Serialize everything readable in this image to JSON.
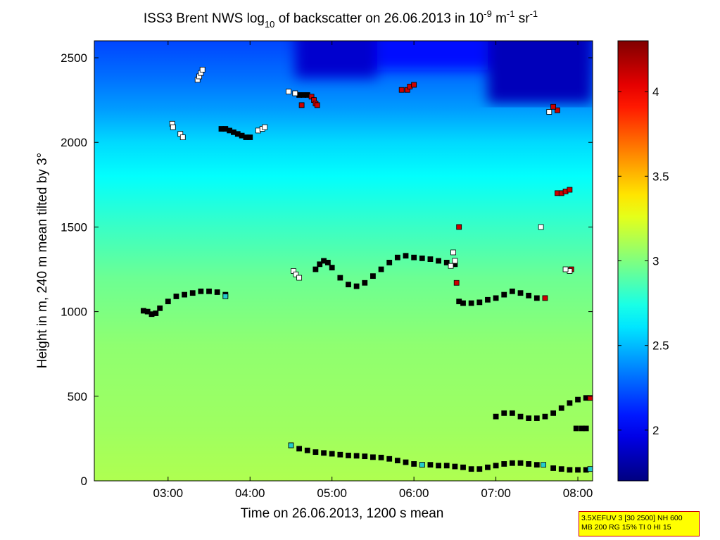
{
  "chart_data": {
    "type": "heatmap",
    "title_parts": {
      "prefix": "ISS3 Brent NWS log",
      "log_base": "10",
      "middle": " of backscatter on 26.06.2013 in 10",
      "exp1": "-9",
      "unit1": " m",
      "exp2": "-1",
      "unit2": " sr",
      "exp3": "-1"
    },
    "xlabel": "Time on 26.06.2013, 1200 s mean",
    "ylabel": "Height in m, 240 m mean tilted by 3°",
    "xlim_hours": [
      2.1,
      8.18
    ],
    "ylim": [
      0,
      2600
    ],
    "x_ticks": [
      {
        "value": 3,
        "label": "03:00"
      },
      {
        "value": 4,
        "label": "04:00"
      },
      {
        "value": 5,
        "label": "05:00"
      },
      {
        "value": 6,
        "label": "06:00"
      },
      {
        "value": 7,
        "label": "07:00"
      },
      {
        "value": 8,
        "label": "08:00"
      }
    ],
    "y_ticks": [
      {
        "value": 0,
        "label": "0"
      },
      {
        "value": 500,
        "label": "500"
      },
      {
        "value": 1000,
        "label": "1000"
      },
      {
        "value": 1500,
        "label": "1500"
      },
      {
        "value": 2000,
        "label": "2000"
      },
      {
        "value": 2500,
        "label": "2500"
      }
    ],
    "colorbar": {
      "range": [
        1.7,
        4.3
      ],
      "ticks": [
        {
          "value": 2,
          "label": "2"
        },
        {
          "value": 2.5,
          "label": "2.5"
        },
        {
          "value": 3,
          "label": "3"
        },
        {
          "value": 3.5,
          "label": "3.5"
        },
        {
          "value": 4,
          "label": "4"
        }
      ]
    },
    "field_profile": [
      {
        "h": 0,
        "v": 3.12
      },
      {
        "h": 300,
        "v": 3.08
      },
      {
        "h": 800,
        "v": 3.04
      },
      {
        "h": 1200,
        "v": 2.95
      },
      {
        "h": 1500,
        "v": 2.82
      },
      {
        "h": 1800,
        "v": 2.68
      },
      {
        "h": 2000,
        "v": 2.58
      },
      {
        "h": 2200,
        "v": 2.42
      },
      {
        "h": 2400,
        "v": 2.3
      },
      {
        "h": 2600,
        "v": 2.2
      }
    ],
    "dark_top_regions": [
      {
        "t1": 4.55,
        "t2": 5.55,
        "h": 2380,
        "v": 1.9
      },
      {
        "t1": 5.55,
        "t2": 6.9,
        "h": 2430,
        "v": 2.05
      },
      {
        "t1": 6.9,
        "t2": 8.18,
        "h": 2230,
        "v": 1.85
      }
    ],
    "series": [
      {
        "name": "layer-1000",
        "points": [
          [
            2.7,
            1005
          ],
          [
            2.75,
            1000
          ],
          [
            2.8,
            985
          ],
          [
            2.85,
            990
          ],
          [
            2.9,
            1020
          ],
          [
            3.0,
            1060
          ],
          [
            3.1,
            1090
          ],
          [
            3.2,
            1100
          ],
          [
            3.3,
            1110
          ],
          [
            3.4,
            1120
          ],
          [
            3.5,
            1120
          ],
          [
            3.6,
            1115
          ],
          [
            3.7,
            1100
          ]
        ],
        "fill": "#000000"
      },
      {
        "name": "layer-wave",
        "points": [
          [
            4.8,
            1250
          ],
          [
            4.85,
            1280
          ],
          [
            4.9,
            1300
          ],
          [
            4.95,
            1290
          ],
          [
            5.0,
            1260
          ],
          [
            5.1,
            1200
          ],
          [
            5.2,
            1160
          ],
          [
            5.3,
            1150
          ],
          [
            5.4,
            1170
          ],
          [
            5.5,
            1210
          ],
          [
            5.6,
            1250
          ],
          [
            5.7,
            1290
          ],
          [
            5.8,
            1320
          ],
          [
            5.9,
            1330
          ],
          [
            6.0,
            1320
          ],
          [
            6.1,
            1315
          ],
          [
            6.2,
            1310
          ],
          [
            6.3,
            1300
          ],
          [
            6.4,
            1290
          ],
          [
            6.5,
            1280
          ]
        ],
        "fill": "#000000"
      },
      {
        "name": "layer-1050",
        "points": [
          [
            6.55,
            1060
          ],
          [
            6.6,
            1050
          ],
          [
            6.7,
            1050
          ],
          [
            6.8,
            1055
          ],
          [
            6.9,
            1070
          ],
          [
            7.0,
            1080
          ],
          [
            7.1,
            1100
          ],
          [
            7.2,
            1120
          ],
          [
            7.3,
            1110
          ],
          [
            7.4,
            1095
          ],
          [
            7.5,
            1080
          ]
        ],
        "fill": "#000000"
      },
      {
        "name": "layer-400",
        "points": [
          [
            7.0,
            380
          ],
          [
            7.1,
            400
          ],
          [
            7.2,
            400
          ],
          [
            7.3,
            380
          ],
          [
            7.4,
            370
          ],
          [
            7.5,
            370
          ],
          [
            7.6,
            380
          ],
          [
            7.7,
            400
          ],
          [
            7.8,
            430
          ],
          [
            7.9,
            460
          ],
          [
            8.0,
            480
          ],
          [
            8.1,
            490
          ]
        ],
        "fill": "#000000"
      },
      {
        "name": "layer-low",
        "points": [
          [
            4.5,
            210
          ],
          [
            4.6,
            190
          ],
          [
            4.7,
            180
          ],
          [
            4.8,
            170
          ],
          [
            4.9,
            165
          ],
          [
            5.0,
            160
          ],
          [
            5.1,
            155
          ],
          [
            5.2,
            150
          ],
          [
            5.3,
            148
          ],
          [
            5.4,
            145
          ],
          [
            5.5,
            140
          ],
          [
            5.6,
            138
          ],
          [
            5.7,
            130
          ],
          [
            5.8,
            120
          ],
          [
            5.9,
            110
          ],
          [
            6.0,
            100
          ],
          [
            6.1,
            95
          ],
          [
            6.2,
            95
          ],
          [
            6.3,
            90
          ],
          [
            6.4,
            90
          ],
          [
            6.5,
            85
          ],
          [
            6.6,
            80
          ],
          [
            6.7,
            70
          ],
          [
            6.8,
            70
          ],
          [
            6.9,
            80
          ],
          [
            7.0,
            90
          ],
          [
            7.1,
            100
          ],
          [
            7.2,
            105
          ],
          [
            7.3,
            105
          ],
          [
            7.4,
            100
          ],
          [
            7.5,
            95
          ]
        ],
        "fill": "#000000"
      },
      {
        "name": "layer-low-end",
        "points": [
          [
            7.7,
            75
          ],
          [
            7.8,
            70
          ],
          [
            7.9,
            65
          ],
          [
            8.0,
            65
          ],
          [
            8.1,
            65
          ]
        ],
        "fill": "#000000"
      },
      {
        "name": "layer-300",
        "points": [
          [
            7.98,
            310
          ],
          [
            8.05,
            310
          ],
          [
            8.1,
            310
          ]
        ],
        "fill": "#000000"
      },
      {
        "name": "layer-2050",
        "points": [
          [
            3.65,
            2080
          ],
          [
            3.7,
            2080
          ],
          [
            3.75,
            2070
          ],
          [
            3.8,
            2060
          ],
          [
            3.85,
            2050
          ],
          [
            3.9,
            2040
          ],
          [
            3.95,
            2030
          ],
          [
            4.0,
            2030
          ]
        ],
        "fill": "#000000"
      },
      {
        "name": "white-2400",
        "points": [
          [
            3.36,
            2370
          ],
          [
            3.38,
            2390
          ],
          [
            3.4,
            2410
          ],
          [
            3.42,
            2430
          ]
        ],
        "fill": "#ffffff"
      },
      {
        "name": "white-2080",
        "points": [
          [
            3.05,
            2110
          ],
          [
            3.06,
            2090
          ],
          [
            3.15,
            2050
          ],
          [
            3.18,
            2030
          ]
        ],
        "fill": "#ffffff"
      },
      {
        "name": "white-2080b",
        "points": [
          [
            4.1,
            2070
          ],
          [
            4.15,
            2080
          ],
          [
            4.18,
            2090
          ]
        ],
        "fill": "#ffffff"
      },
      {
        "name": "black-2280",
        "points": [
          [
            4.6,
            2280
          ],
          [
            4.65,
            2280
          ],
          [
            4.7,
            2280
          ]
        ],
        "fill": "#000000"
      },
      {
        "name": "white-top",
        "points": [
          [
            4.47,
            2300
          ],
          [
            4.55,
            2290
          ]
        ],
        "fill": "#ffffff"
      },
      {
        "name": "white-1230",
        "points": [
          [
            4.53,
            1240
          ],
          [
            4.56,
            1220
          ],
          [
            4.6,
            1200
          ]
        ],
        "fill": "#ffffff"
      },
      {
        "name": "red-2250",
        "points": [
          [
            4.75,
            2270
          ],
          [
            4.78,
            2250
          ],
          [
            4.8,
            2230
          ],
          [
            4.82,
            2220
          ],
          [
            4.63,
            2220
          ]
        ],
        "fill": "#cc0000"
      },
      {
        "name": "red-2320",
        "points": [
          [
            5.85,
            2310
          ],
          [
            5.92,
            2310
          ],
          [
            5.95,
            2330
          ],
          [
            6.0,
            2340
          ]
        ],
        "fill": "#cc0000"
      },
      {
        "name": "red-scatter",
        "points": [
          [
            6.55,
            1500
          ],
          [
            6.52,
            1170
          ],
          [
            7.6,
            1080
          ],
          [
            7.92,
            1250
          ],
          [
            7.75,
            2190
          ],
          [
            7.7,
            2210
          ],
          [
            8.15,
            490
          ]
        ],
        "fill": "#cc0000"
      },
      {
        "name": "red-1700",
        "points": [
          [
            7.75,
            1700
          ],
          [
            7.8,
            1700
          ],
          [
            7.85,
            1710
          ],
          [
            7.9,
            1720
          ]
        ],
        "fill": "#cc0000"
      },
      {
        "name": "white-scatter",
        "points": [
          [
            7.55,
            1500
          ],
          [
            7.65,
            2180
          ],
          [
            7.9,
            1240
          ],
          [
            6.48,
            1350
          ],
          [
            6.5,
            1300
          ],
          [
            6.45,
            1270
          ],
          [
            7.85,
            1250
          ]
        ],
        "fill": "#ffffff"
      },
      {
        "name": "cyan-marks",
        "points": [
          [
            3.7,
            1090
          ],
          [
            4.5,
            210
          ],
          [
            7.58,
            95
          ],
          [
            8.15,
            70
          ],
          [
            6.1,
            95
          ]
        ],
        "fill": "#22cccc"
      }
    ]
  },
  "info_box": {
    "line1": "3.5XEFUV 3 [30 2500] NH 600",
    "line2": "MB 200 RG 15% TI 0 HI 15"
  }
}
